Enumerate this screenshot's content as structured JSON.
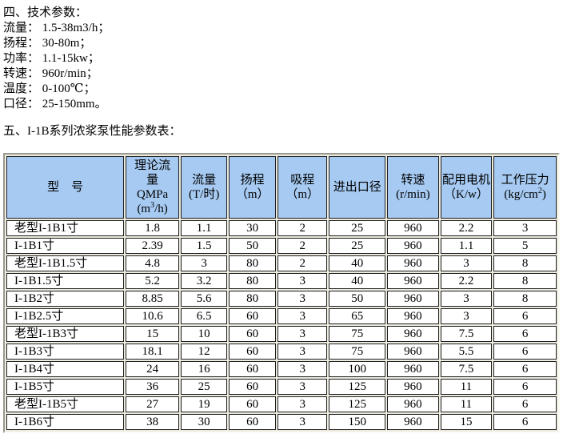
{
  "colors": {
    "page_bg": "#FFFFFF",
    "text": "#000000",
    "header_bg": "#A6CAF2",
    "cell_bg": "#FFFFFF",
    "cell_border": "#1F1F1F",
    "table_face": "#EDEADF",
    "outer_dark": "#9A9A92",
    "outer_light": "#FBFAF4"
  },
  "tech_params": {
    "heading": "四、技术参数：",
    "lines": [
      "流量： 1.5-38m3/h；",
      "扬程： 30-80m；",
      "功率： 1.1-15kw；",
      "转速： 960r/min；",
      "温度： 0-100℃；",
      "口径： 25-150mm。"
    ]
  },
  "table_section": {
    "heading": "五、I-1B系列浓浆泵性能参数表："
  },
  "table": {
    "headers": {
      "model": "型　号",
      "theory_flow": {
        "l1": "理论流",
        "l2": "量",
        "l3": "QMPa",
        "unit_open": "(m",
        "unit_sup": "3",
        "unit_close": "/h)"
      },
      "flow": {
        "l1": "流量",
        "l2": "(T/时)"
      },
      "head": {
        "l1": "扬程",
        "l2": "（m）"
      },
      "suction": {
        "l1": "吸程",
        "l2": "（m）"
      },
      "inlet_outlet": "进出口径",
      "speed": {
        "l1": "转速",
        "l2": "(r/min)"
      },
      "motor": {
        "l1": "配用电机",
        "l2": "（K/w）"
      },
      "pressure": {
        "l1": "工作压力",
        "unit_open": "(kg/cm",
        "unit_sup": "2",
        "unit_close": ")"
      }
    },
    "rows": [
      [
        "老型I-1B1寸",
        "1.8",
        "1.1",
        "30",
        "2",
        "25",
        "960",
        "2.2",
        "3"
      ],
      [
        "I-1B1寸",
        "2.39",
        "1.5",
        "50",
        "2",
        "25",
        "960",
        "1.1",
        "5"
      ],
      [
        "老型I-1B1.5寸",
        "4.8",
        "3",
        "80",
        "2",
        "40",
        "960",
        "3",
        "8"
      ],
      [
        "I-1B1.5寸",
        "5.2",
        "3.2",
        "80",
        "3",
        "40",
        "960",
        "2.2",
        "8"
      ],
      [
        "I-1B2寸",
        "8.85",
        "5.6",
        "80",
        "3",
        "50",
        "960",
        "3",
        "8"
      ],
      [
        "I-1B2.5寸",
        "10.6",
        "6.5",
        "60",
        "3",
        "65",
        "960",
        "3",
        "6"
      ],
      [
        "老型I-1B3寸",
        "15",
        "10",
        "60",
        "3",
        "75",
        "960",
        "7.5",
        "6"
      ],
      [
        "I-1B3寸",
        "18.1",
        "12",
        "60",
        "3",
        "75",
        "960",
        "5.5",
        "6"
      ],
      [
        "I-1B4寸",
        "24",
        "16",
        "60",
        "3",
        "100",
        "960",
        "7.5",
        "6"
      ],
      [
        "I-1B5寸",
        "36",
        "25",
        "60",
        "3",
        "125",
        "960",
        "11",
        "6"
      ],
      [
        "老型I-1B5寸",
        "27",
        "19",
        "60",
        "3",
        "125",
        "960",
        "11",
        "6"
      ],
      [
        "I-1B6寸",
        "38",
        "30",
        "60",
        "3",
        "150",
        "960",
        "15",
        "6"
      ]
    ]
  }
}
